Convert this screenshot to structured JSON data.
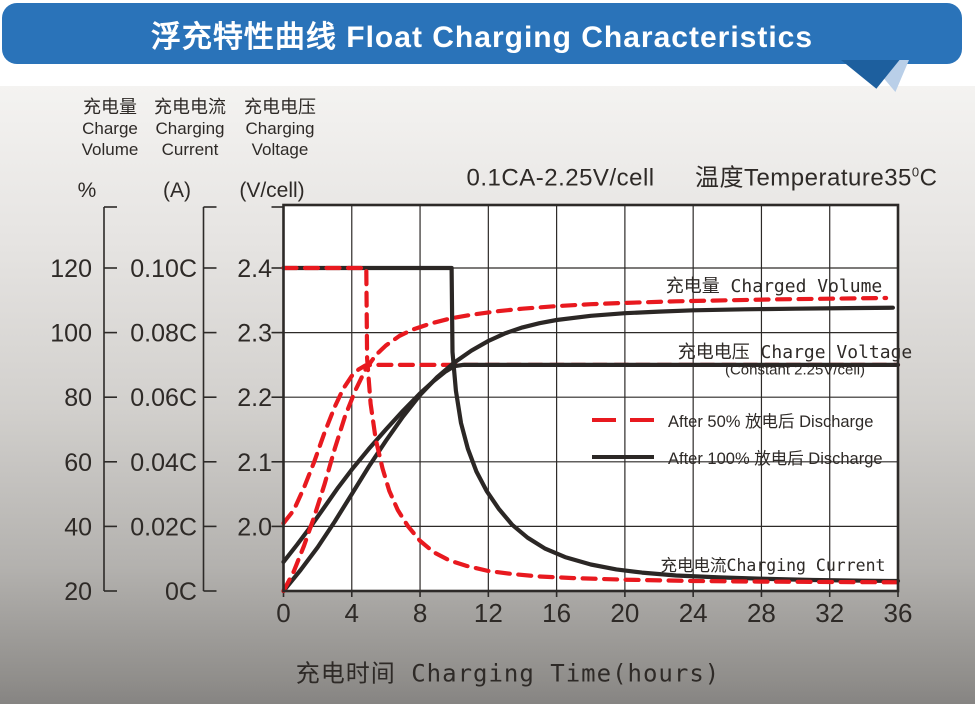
{
  "title": "浮充特性曲线 Float Charging Characteristics",
  "condition": {
    "left": "0.1CA-2.25V/cell",
    "right": "温度Temperature35",
    "sup": "0",
    "end": "C"
  },
  "axis_headers": [
    {
      "cjk": "充电量",
      "en1": "Charge",
      "en2": "Volume"
    },
    {
      "cjk": "充电电流",
      "en1": "Charging",
      "en2": "Current"
    },
    {
      "cjk": "充电电压",
      "en1": "Charging",
      "en2": "Voltage"
    }
  ],
  "curve_labels": {
    "volume": "充电量 Charged Volume",
    "voltage": "充电电压 Charge Voltage",
    "voltage_sub": "(Constant 2.25V/cell)",
    "current": "充电电流Charging Current"
  },
  "legend": [
    {
      "label": "After 50% 放电后 Discharge",
      "style": "dashed",
      "color": "#e8191f"
    },
    {
      "label": "After 100% 放电后 Discharge",
      "style": "solid",
      "color": "#2b2725"
    }
  ],
  "xlabel": "充电时间 Charging Time(hours)",
  "colors": {
    "title_bar": "#2a73b9",
    "tail_dark": "#1d5f9e",
    "tail_light": "#b9cfe8",
    "red_curve": "#e8191f",
    "black_curve": "#2b2725",
    "grid_line": "#2d2a28",
    "text": "#2e2a27"
  },
  "chart_data": {
    "type": "line",
    "title": "浮充特性曲线 Float Charging Characteristics",
    "condition": "0.1CA-2.25V/cell  温度 Temperature 35°C",
    "grid": true,
    "legend_position": "middle-right",
    "x": {
      "label": "充电时间 Charging Time(hours)",
      "min": 0,
      "max": 36,
      "ticks": [
        "0",
        "4",
        "8",
        "12",
        "16",
        "20",
        "24",
        "28",
        "32",
        "36"
      ]
    },
    "y_axes": [
      {
        "id": "percent",
        "label": "充电量 Charge Volume",
        "unit": "%",
        "min": 20,
        "max": 120,
        "ticks": [
          "120",
          "100",
          "80",
          "60",
          "40",
          "20"
        ]
      },
      {
        "id": "current",
        "label": "充电电流 Charging Current",
        "unit": "(A)",
        "min": 0,
        "max": 0.1,
        "ticks": [
          "0.10C",
          "0.08C",
          "0.06C",
          "0.04C",
          "0.02C",
          "0C"
        ]
      },
      {
        "id": "voltage",
        "label": "充电电压 Charging Voltage",
        "unit": "(V/cell)",
        "min": 1.9,
        "max": 2.4,
        "ticks": [
          "2.4",
          "2.3",
          "2.2",
          "2.1",
          "2.0",
          ""
        ]
      }
    ],
    "series": [
      {
        "name": "Charge voltage after 50% discharge",
        "axis": "voltage",
        "color": "#e8191f",
        "dash": true,
        "points": [
          [
            0,
            2.005
          ],
          [
            0.6,
            2.025
          ],
          [
            1.2,
            2.06
          ],
          [
            1.8,
            2.1
          ],
          [
            2.4,
            2.145
          ],
          [
            3.0,
            2.185
          ],
          [
            3.5,
            2.213
          ],
          [
            4.0,
            2.233
          ],
          [
            4.4,
            2.243
          ],
          [
            4.8,
            2.249
          ],
          [
            5.2,
            2.25
          ],
          [
            36,
            2.25
          ]
        ]
      },
      {
        "name": "Charge voltage after 100% discharge (constant 2.25V/cell)",
        "axis": "voltage",
        "color": "#2b2725",
        "dash": false,
        "points": [
          [
            0,
            1.945
          ],
          [
            0.8,
            1.972
          ],
          [
            1.6,
            2.0
          ],
          [
            2.4,
            2.03
          ],
          [
            3.2,
            2.06
          ],
          [
            4,
            2.088
          ],
          [
            5,
            2.12
          ],
          [
            6,
            2.15
          ],
          [
            7,
            2.179
          ],
          [
            8,
            2.206
          ],
          [
            8.8,
            2.225
          ],
          [
            9.5,
            2.24
          ],
          [
            10,
            2.248
          ],
          [
            10.5,
            2.25
          ],
          [
            36,
            2.25
          ]
        ]
      },
      {
        "name": "Charged volume after 100% discharge",
        "axis": "percent",
        "color": "#2b2725",
        "dash": false,
        "points": [
          [
            0,
            20
          ],
          [
            1,
            26.5
          ],
          [
            2,
            33.5
          ],
          [
            3,
            41.5
          ],
          [
            4,
            50
          ],
          [
            5,
            58.5
          ],
          [
            6,
            66.5
          ],
          [
            7,
            74
          ],
          [
            8,
            80.7
          ],
          [
            9,
            86.2
          ],
          [
            10,
            90.7
          ],
          [
            11,
            94.4
          ],
          [
            12,
            97.4
          ],
          [
            13,
            99.8
          ],
          [
            14,
            101.6
          ],
          [
            15,
            102.9
          ],
          [
            16,
            103.9
          ],
          [
            18,
            105.2
          ],
          [
            20,
            106.0
          ],
          [
            22,
            106.5
          ],
          [
            24,
            106.9
          ],
          [
            27,
            107.2
          ],
          [
            30,
            107.4
          ],
          [
            33,
            107.6
          ],
          [
            35.7,
            107.7
          ]
        ]
      },
      {
        "name": "Charged volume after 50% discharge",
        "axis": "percent",
        "color": "#e8191f",
        "dash": true,
        "points": [
          [
            0,
            20
          ],
          [
            0.6,
            26
          ],
          [
            1.2,
            34
          ],
          [
            1.8,
            43
          ],
          [
            2.4,
            53
          ],
          [
            3.0,
            64
          ],
          [
            3.6,
            74
          ],
          [
            4.2,
            82
          ],
          [
            4.8,
            88.5
          ],
          [
            5.4,
            93
          ],
          [
            6,
            96
          ],
          [
            6.8,
            99
          ],
          [
            7.6,
            101
          ],
          [
            8.6,
            102.8
          ],
          [
            9.8,
            104.4
          ],
          [
            11,
            105.5
          ],
          [
            12.5,
            106.6
          ],
          [
            14,
            107.4
          ],
          [
            16,
            108.2
          ],
          [
            18,
            108.8
          ],
          [
            20,
            109.2
          ],
          [
            23,
            109.7
          ],
          [
            26,
            110.0
          ],
          [
            29,
            110.3
          ],
          [
            32,
            110.5
          ],
          [
            35.3,
            110.7
          ]
        ]
      },
      {
        "name": "Charging current after 100% discharge",
        "axis": "current",
        "color": "#2b2725",
        "dash": false,
        "points": [
          [
            0,
            0.1
          ],
          [
            9.85,
            0.1
          ],
          [
            9.9,
            0.074
          ],
          [
            10.1,
            0.062
          ],
          [
            10.4,
            0.052
          ],
          [
            10.8,
            0.044
          ],
          [
            11.3,
            0.037
          ],
          [
            11.9,
            0.031
          ],
          [
            12.6,
            0.0255
          ],
          [
            13.4,
            0.0205
          ],
          [
            14.3,
            0.0165
          ],
          [
            15.3,
            0.0132
          ],
          [
            16.5,
            0.0105
          ],
          [
            18,
            0.0082
          ],
          [
            19.5,
            0.0067
          ],
          [
            21,
            0.0057
          ],
          [
            23,
            0.0048
          ],
          [
            25.5,
            0.0042
          ],
          [
            28,
            0.0038
          ],
          [
            31,
            0.0034
          ],
          [
            34,
            0.0032
          ],
          [
            36,
            0.0031
          ]
        ]
      },
      {
        "name": "Charging current after 50% discharge",
        "axis": "current",
        "color": "#e8191f",
        "dash": true,
        "points": [
          [
            0,
            0.1
          ],
          [
            4.85,
            0.1
          ],
          [
            4.9,
            0.072
          ],
          [
            5.1,
            0.058
          ],
          [
            5.4,
            0.047
          ],
          [
            5.8,
            0.038
          ],
          [
            6.2,
            0.031
          ],
          [
            6.7,
            0.025
          ],
          [
            7.3,
            0.02
          ],
          [
            8,
            0.0155
          ],
          [
            8.8,
            0.012
          ],
          [
            9.7,
            0.0095
          ],
          [
            10.7,
            0.0078
          ],
          [
            12,
            0.0062
          ],
          [
            13.5,
            0.0052
          ],
          [
            15,
            0.0045
          ],
          [
            17,
            0.004
          ],
          [
            20,
            0.0035
          ],
          [
            24,
            0.0031
          ],
          [
            28,
            0.0029
          ],
          [
            32,
            0.0028
          ],
          [
            36,
            0.0027
          ]
        ]
      }
    ]
  }
}
